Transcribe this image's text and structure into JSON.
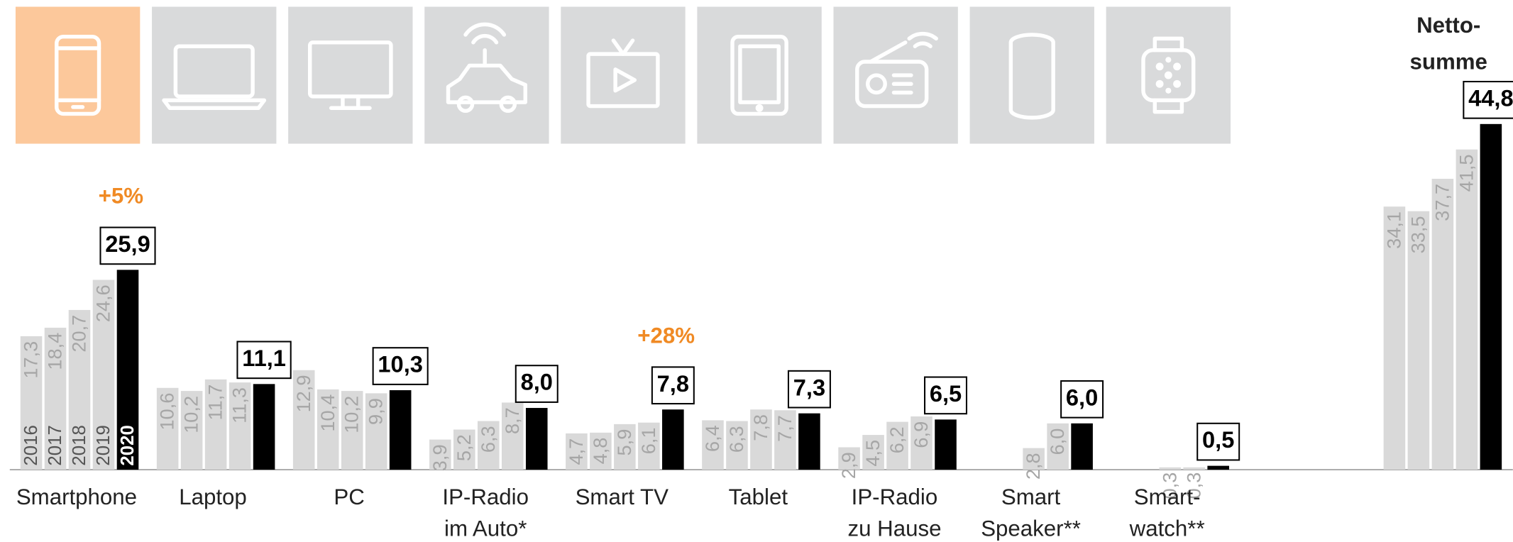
{
  "chart_data": {
    "type": "bar",
    "categories": [
      "Smartphone",
      "Laptop",
      "PC",
      "IP-Radio\nim Auto*",
      "Smart TV",
      "Tablet",
      "IP-Radio\nzu Hause",
      "Smart\nSpeaker**",
      "Smart-\nwatch**",
      null
    ],
    "series": [
      {
        "name": "2016",
        "color": "#d9d9d9",
        "values": [
          17.3,
          10.6,
          12.9,
          3.9,
          4.7,
          6.4,
          2.9,
          null,
          null,
          34.1
        ],
        "value_labels": [
          "17,3",
          "10,6",
          "12,9",
          "3,9",
          "4,7",
          "6,4",
          "2,9",
          null,
          null,
          "34,1"
        ]
      },
      {
        "name": "2017",
        "color": "#d9d9d9",
        "values": [
          18.4,
          10.2,
          10.4,
          5.2,
          4.8,
          6.3,
          4.5,
          null,
          null,
          33.5
        ],
        "value_labels": [
          "18,4",
          "10,2",
          "10,4",
          "5,2",
          "4,8",
          "6,3",
          "4,5",
          null,
          null,
          "33,5"
        ]
      },
      {
        "name": "2018",
        "color": "#d9d9d9",
        "values": [
          20.7,
          11.7,
          10.2,
          6.3,
          5.9,
          7.8,
          6.2,
          2.8,
          0.3,
          37.7
        ],
        "value_labels": [
          "20,7",
          "11,7",
          "10,2",
          "6,3",
          "5,9",
          "7,8",
          "6,2",
          "2,8",
          "0,3",
          "37,7"
        ]
      },
      {
        "name": "2019",
        "color": "#d9d9d9",
        "values": [
          24.6,
          11.3,
          9.9,
          8.7,
          6.1,
          7.7,
          6.9,
          6.0,
          0.3,
          41.5
        ],
        "value_labels": [
          "24,6",
          "11,3",
          "9,9",
          "8,7",
          "6,1",
          "7,7",
          "6,9",
          "6,0",
          "0,3",
          "41,5"
        ]
      },
      {
        "name": "2020",
        "color": "#000000",
        "values": [
          25.9,
          11.1,
          10.3,
          8.0,
          7.8,
          7.3,
          6.5,
          6.0,
          0.5,
          44.8
        ],
        "value_labels": [
          "25,9",
          "11,1",
          "10,3",
          "8,0",
          "7,8",
          "7,3",
          "6,5",
          "6,0",
          "0,5",
          "44,8"
        ]
      }
    ],
    "ylim": [
      0,
      60
    ],
    "annotations": [
      {
        "text": "+5%",
        "category": 0,
        "color": "#f08a24"
      },
      {
        "text": "+28%",
        "category": 4,
        "color": "#f08a24"
      },
      {
        "text": "Netto-\nsumme",
        "category": 9,
        "color": "#222222"
      }
    ]
  }
}
